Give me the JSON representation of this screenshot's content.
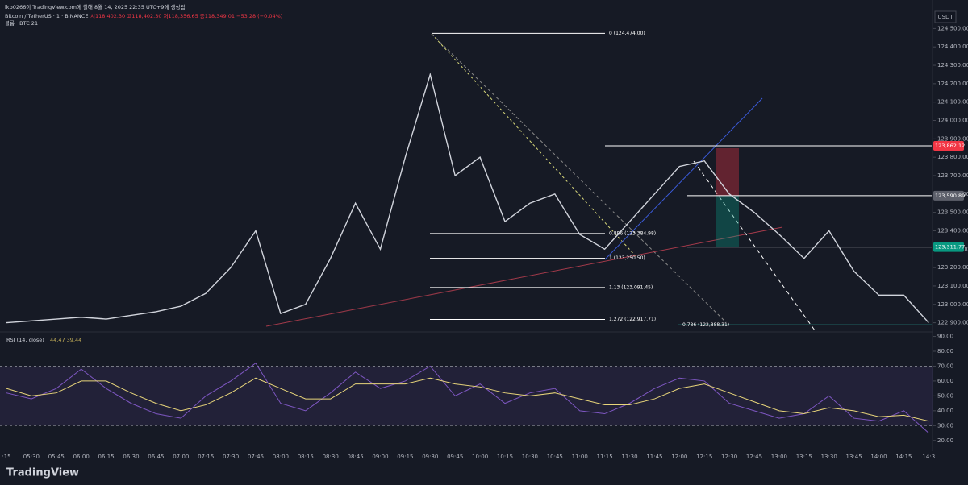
{
  "watermark": "lkb0266이 TradingView.com에 찰해 8월 14, 2025 22:35 UTC+9에 생성됨",
  "footer": "TradingView",
  "chart_data": [
    {
      "type": "line",
      "title": "Bitcoin / TetherUS · 1 · BINANCE",
      "ohlc_text": "시118,402.30 고118,402.30 저118,356.65 종118,349.01 −53.28 (−0.04%)",
      "volume_label": "볼륨 · BTC 21",
      "currency": "USDT",
      "categories": [
        ":15",
        "05:30",
        "05:45",
        "06:00",
        "06:15",
        "06:30",
        "06:45",
        "07:00",
        "07:15",
        "07:30",
        "07:45",
        "08:00",
        "08:15",
        "08:30",
        "08:45",
        "09:00",
        "09:15",
        "09:30",
        "09:45",
        "10:00",
        "10:15",
        "10:30",
        "10:45",
        "11:00",
        "11:15",
        "11:30",
        "11:45",
        "12:00",
        "12:15",
        "12:30",
        "12:45",
        "13:00",
        "13:15",
        "13:30",
        "13:45",
        "14:00",
        "14:15",
        "14:3"
      ],
      "values": [
        122900,
        122910,
        122920,
        122930,
        122920,
        122940,
        122960,
        122990,
        123060,
        123200,
        123400,
        122950,
        123000,
        123250,
        123550,
        123300,
        123800,
        124250,
        123700,
        123800,
        123450,
        123550,
        123600,
        123380,
        123300,
        123450,
        123600,
        123750,
        123780,
        123600,
        123500,
        123380,
        123250,
        123400,
        123180,
        123050,
        123050,
        122900
      ],
      "color": "#d1d4dc",
      "ylim": [
        122850,
        124620
      ],
      "yticks": [
        {
          "value": 122900,
          "label": "122,900.00"
        },
        {
          "value": 123000,
          "label": "123,000.00"
        },
        {
          "value": 123100,
          "label": "123,100.00"
        },
        {
          "value": 123200,
          "label": "123,200.00"
        },
        {
          "value": 123300,
          "label": "123,300.00"
        },
        {
          "value": 123400,
          "label": "123,400.00"
        },
        {
          "value": 123500,
          "label": "123,500.00"
        },
        {
          "value": 123600,
          "label": "123,600.00"
        },
        {
          "value": 123700,
          "label": "123,700.00"
        },
        {
          "value": 123800,
          "label": "123,800.00"
        },
        {
          "value": 123900,
          "label": "123,900.00"
        },
        {
          "value": 124000,
          "label": "124,000.00"
        },
        {
          "value": 124100,
          "label": "124,100.00"
        },
        {
          "value": 124200,
          "label": "124,200.00"
        },
        {
          "value": 124300,
          "label": "124,300.00"
        },
        {
          "value": 124400,
          "label": "124,400.00"
        },
        {
          "value": 124500,
          "label": "124,500.00"
        }
      ],
      "annotations": [
        {
          "value": 124474,
          "label": "0 (124,474.00)"
        },
        {
          "value": 123384.98,
          "label": "0.886 (123,384.98)"
        },
        {
          "value": 123250.5,
          "label": "1 (123,250.50)"
        },
        {
          "value": 123091.45,
          "label": "1.13 (123,091.45)"
        },
        {
          "value": 122917.71,
          "label": "1.272 (122,917.71)"
        },
        {
          "value": 122888.31,
          "label": "0.786 (122,888.31)"
        }
      ],
      "price_tags": [
        {
          "value": 123862.12,
          "label": "123,862.12",
          "color": "#f23645"
        },
        {
          "value": 123590.89,
          "label": "123,590.89",
          "color": "#5d606b"
        },
        {
          "value": 123311.77,
          "label": "123,311.77",
          "color": "#089981"
        }
      ]
    },
    {
      "type": "line",
      "title": "RSI (14, close)",
      "readout": "44.47 39.44",
      "series": [
        {
          "color": "#7e57c2",
          "values": [
            52,
            48,
            55,
            68,
            55,
            45,
            38,
            35,
            50,
            60,
            72,
            45,
            40,
            52,
            66,
            55,
            60,
            70,
            50,
            58,
            45,
            52,
            55,
            40,
            38,
            45,
            55,
            62,
            60,
            45,
            40,
            35,
            38,
            50,
            35,
            33,
            40,
            25
          ]
        },
        {
          "color": "#e8d57a",
          "values": [
            55,
            50,
            52,
            60,
            60,
            52,
            45,
            40,
            44,
            52,
            62,
            55,
            48,
            48,
            58,
            58,
            58,
            62,
            58,
            56,
            52,
            50,
            52,
            48,
            44,
            44,
            48,
            55,
            58,
            52,
            46,
            40,
            38,
            42,
            40,
            36,
            37,
            33
          ]
        }
      ],
      "ylim": [
        15,
        93
      ],
      "yticks": [
        {
          "value": 20,
          "label": "20.00"
        },
        {
          "value": 30,
          "label": "30.00"
        },
        {
          "value": 40,
          "label": "40.00"
        },
        {
          "value": 50,
          "label": "50.00"
        },
        {
          "value": 60,
          "label": "60.00"
        },
        {
          "value": 70,
          "label": "70.00"
        },
        {
          "value": 80,
          "label": "80.00"
        },
        {
          "value": 90,
          "label": "90.00"
        }
      ],
      "band": [
        30,
        70
      ]
    }
  ]
}
